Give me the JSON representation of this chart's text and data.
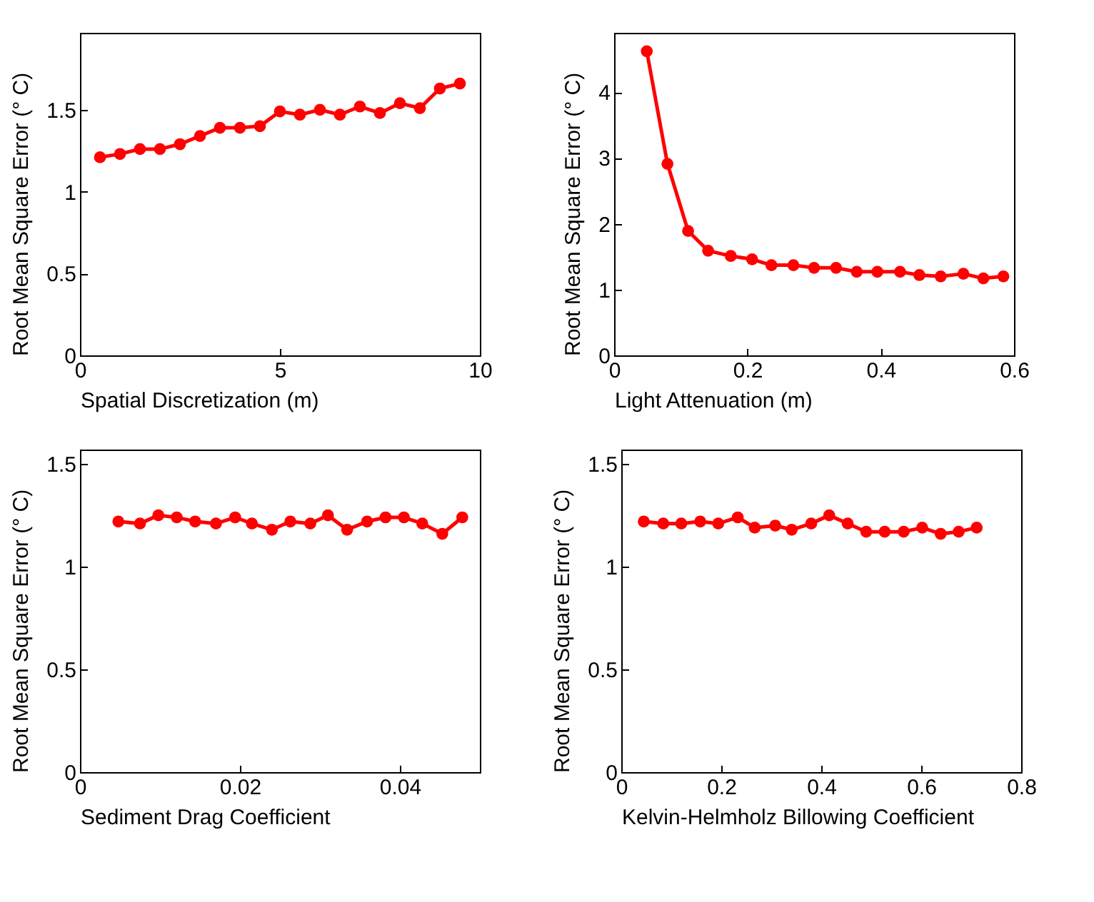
{
  "chart_data": [
    {
      "type": "line",
      "xlabel": "Spatial Discretization (m)",
      "ylabel": "Root Mean Square Error (° C)",
      "xlim": [
        0,
        10
      ],
      "xticks": [
        0,
        5,
        10
      ],
      "ylim": [
        0,
        1.97
      ],
      "yticks": [
        0,
        0.5,
        1,
        1.5
      ],
      "grid": false,
      "marker": "circle",
      "line_style": "solid",
      "series": [
        {
          "color": "#ff0000",
          "x": [
            0.5,
            1,
            1.5,
            2,
            2.5,
            3,
            3.5,
            4,
            4.5,
            5,
            5.5,
            6,
            6.5,
            7,
            7.5,
            8,
            8.5,
            9,
            9.5
          ],
          "values": [
            1.21,
            1.23,
            1.26,
            1.26,
            1.29,
            1.34,
            1.39,
            1.39,
            1.4,
            1.49,
            1.47,
            1.5,
            1.47,
            1.52,
            1.48,
            1.54,
            1.51,
            1.63,
            1.66
          ]
        }
      ]
    },
    {
      "type": "line",
      "xlabel": "Light Attenuation (m)",
      "ylabel": "Root Mean Square Error (° C)",
      "xlim": [
        0,
        0.6
      ],
      "xticks": [
        0,
        0.2,
        0.4,
        0.6
      ],
      "ylim": [
        0,
        4.9
      ],
      "yticks": [
        0,
        1,
        2,
        3,
        4
      ],
      "grid": false,
      "marker": "circle",
      "line_style": "solid",
      "series": [
        {
          "color": "#ff0000",
          "x": [
            0.049,
            0.08,
            0.111,
            0.141,
            0.175,
            0.207,
            0.236,
            0.269,
            0.3,
            0.333,
            0.364,
            0.395,
            0.429,
            0.458,
            0.49,
            0.524,
            0.554,
            0.584
          ],
          "values": [
            4.62,
            2.91,
            1.89,
            1.59,
            1.51,
            1.46,
            1.37,
            1.37,
            1.33,
            1.33,
            1.27,
            1.27,
            1.27,
            1.22,
            1.2,
            1.24,
            1.17,
            1.2
          ]
        }
      ]
    },
    {
      "type": "line",
      "xlabel": "Sediment Drag Coefficient",
      "ylabel": "Root Mean Square Error (° C)",
      "xlim": [
        0,
        0.05
      ],
      "xticks": [
        0,
        0.02,
        0.04
      ],
      "ylim": [
        0,
        1.57
      ],
      "yticks": [
        0,
        0.5,
        1,
        1.5
      ],
      "grid": false,
      "marker": "circle",
      "line_style": "solid",
      "series": [
        {
          "color": "#ff0000",
          "x": [
            0.0048,
            0.0075,
            0.0098,
            0.0121,
            0.0144,
            0.017,
            0.0194,
            0.0215,
            0.024,
            0.0263,
            0.0288,
            0.031,
            0.0334,
            0.0359,
            0.0382,
            0.0405,
            0.0428,
            0.0453,
            0.0478
          ],
          "values": [
            1.22,
            1.21,
            1.25,
            1.24,
            1.22,
            1.21,
            1.24,
            1.21,
            1.18,
            1.22,
            1.21,
            1.25,
            1.18,
            1.22,
            1.24,
            1.24,
            1.21,
            1.16,
            1.24
          ]
        }
      ]
    },
    {
      "type": "line",
      "xlabel": "Kelvin-Helmholz Billowing Coefficient",
      "ylabel": "Root Mean Square Error (° C)",
      "xlim": [
        0,
        0.8
      ],
      "xticks": [
        0,
        0.2,
        0.4,
        0.6,
        0.8
      ],
      "ylim": [
        0,
        1.57
      ],
      "yticks": [
        0,
        0.5,
        1,
        1.5
      ],
      "grid": false,
      "marker": "circle",
      "line_style": "solid",
      "series": [
        {
          "color": "#ff0000",
          "x": [
            0.045,
            0.084,
            0.12,
            0.158,
            0.194,
            0.233,
            0.267,
            0.308,
            0.341,
            0.38,
            0.416,
            0.453,
            0.49,
            0.527,
            0.565,
            0.602,
            0.639,
            0.675,
            0.711
          ],
          "values": [
            1.22,
            1.21,
            1.21,
            1.22,
            1.21,
            1.24,
            1.19,
            1.2,
            1.18,
            1.21,
            1.25,
            1.21,
            1.17,
            1.17,
            1.17,
            1.19,
            1.16,
            1.17,
            1.19
          ]
        }
      ]
    }
  ]
}
